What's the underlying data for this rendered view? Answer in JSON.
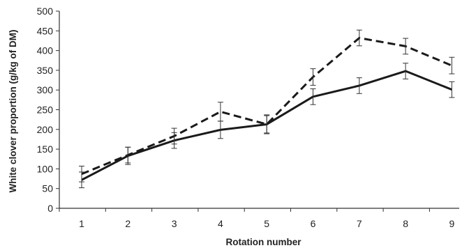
{
  "chart_data": {
    "type": "line",
    "title": "",
    "xlabel": "Rotation number",
    "ylabel": "White clover proportion (g/kg of DM)",
    "x": [
      1,
      2,
      3,
      4,
      5,
      6,
      7,
      8,
      9
    ],
    "ylim": [
      0,
      500
    ],
    "yticks": [
      0,
      50,
      100,
      150,
      200,
      250,
      300,
      350,
      400,
      450,
      500
    ],
    "grid": false,
    "legend": "none",
    "series": [
      {
        "style": "solid",
        "color": "#1a1a1a",
        "values": [
          72,
          133,
          172,
          199,
          213,
          283,
          311,
          348,
          301
        ],
        "error": [
          20,
          22,
          20,
          22,
          22,
          20,
          20,
          20,
          20
        ]
      },
      {
        "style": "dashed",
        "color": "#1a1a1a",
        "values": [
          87,
          135,
          183,
          245,
          213,
          333,
          432,
          411,
          362
        ],
        "error": [
          20,
          20,
          20,
          24,
          24,
          21,
          20,
          20,
          21
        ]
      }
    ]
  }
}
